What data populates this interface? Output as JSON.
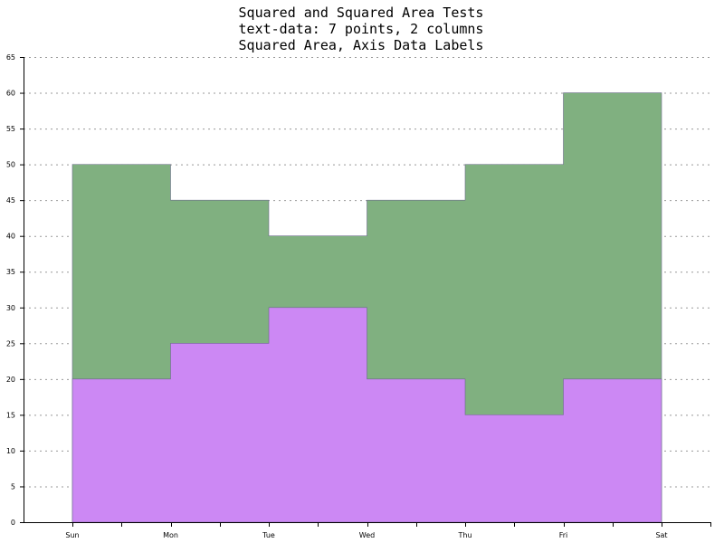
{
  "chart_data": {
    "type": "area",
    "step": "post",
    "stacked": false,
    "title_lines": [
      "Squared and Squared Area Tests",
      "text-data: 7 points, 2 columns",
      "Squared Area, Axis Data Labels"
    ],
    "xlabel": "",
    "ylabel": "",
    "categories": [
      "Sun",
      "Mon",
      "Tue",
      "Wed",
      "Thu",
      "Fri",
      "Sat"
    ],
    "series": [
      {
        "values": [
          50,
          45,
          40,
          45,
          50,
          60,
          60
        ],
        "color": "#80b080"
      },
      {
        "values": [
          20,
          25,
          30,
          20,
          15,
          20,
          20
        ],
        "color": "#cc88f4"
      }
    ],
    "ylim": [
      0,
      65
    ],
    "yticks": [
      0,
      5,
      10,
      15,
      20,
      25,
      30,
      35,
      40,
      45,
      50,
      55,
      60,
      65
    ],
    "grid": true,
    "legend": "none"
  }
}
